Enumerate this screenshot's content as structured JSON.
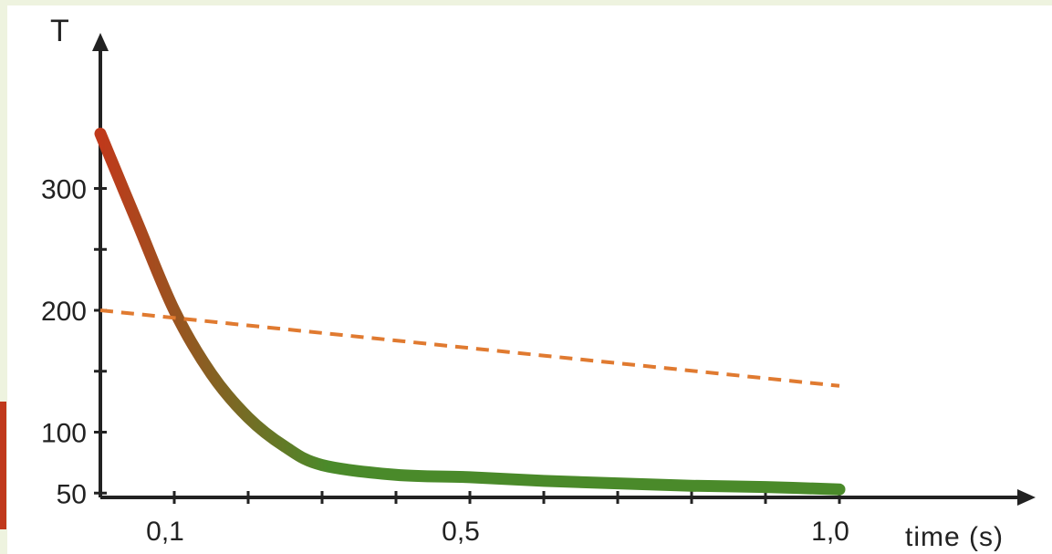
{
  "chart_data": {
    "type": "line",
    "xlabel": "time (s)",
    "ylabel": "T",
    "xlim": [
      0,
      1.05
    ],
    "ylim": [
      0,
      350
    ],
    "x_ticks": [
      {
        "value": 0.1,
        "label": "0,1"
      },
      {
        "value": 0.5,
        "label": "0,5"
      },
      {
        "value": 1.0,
        "label": "1,0"
      }
    ],
    "x_minor_ticks": [
      0.1,
      0.2,
      0.3,
      0.4,
      0.5,
      0.6,
      0.7,
      0.8,
      0.9,
      1.0
    ],
    "y_ticks": [
      {
        "value": 50,
        "label": "50"
      },
      {
        "value": 100,
        "label": "100"
      },
      {
        "value": 200,
        "label": "200"
      },
      {
        "value": 300,
        "label": "300"
      }
    ],
    "y_minor_ticks": [
      50,
      100,
      150,
      200,
      250,
      300
    ],
    "grid": false,
    "series": [
      {
        "style": "solid",
        "color_start": "#c0391b",
        "color_end": "#4a8a2a",
        "x": [
          0,
          0.05,
          0.1,
          0.15,
          0.2,
          0.25,
          0.3,
          0.4,
          0.5,
          0.6,
          0.7,
          0.8,
          0.9,
          1.0
        ],
        "y": [
          345,
          272,
          200,
          148,
          112,
          88,
          73,
          65,
          63,
          60,
          58,
          56,
          55,
          53
        ]
      },
      {
        "style": "dashed",
        "color": "#e07a30",
        "x": [
          0,
          1.0
        ],
        "y": [
          200,
          138
        ]
      }
    ]
  }
}
